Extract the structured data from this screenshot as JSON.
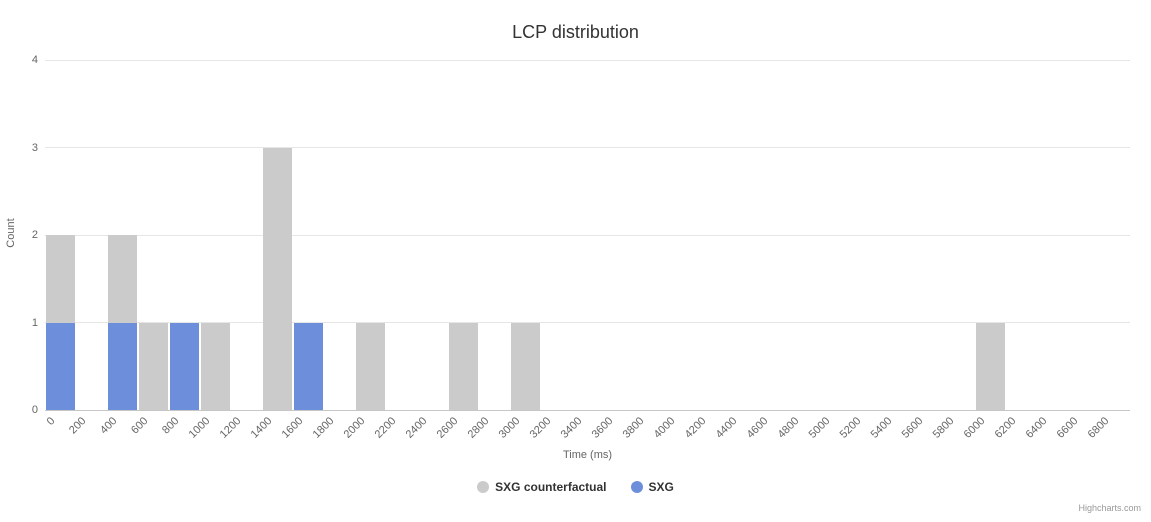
{
  "chart": {
    "title": "LCP distribution",
    "ylabel": "Count",
    "xlabel": "Time (ms)",
    "credit": "Highcharts.com"
  },
  "chart_data": {
    "type": "bar",
    "title": "LCP distribution",
    "xlabel": "Time (ms)",
    "ylabel": "Count",
    "ylim": [
      0,
      4
    ],
    "yticks": [
      0,
      1,
      2,
      3,
      4
    ],
    "grid": true,
    "legend_position": "bottom-center",
    "x_bin_size": 200,
    "x_axis_max": 7000,
    "x_tick_labels": [
      0,
      200,
      400,
      600,
      800,
      1000,
      1200,
      1400,
      1600,
      1800,
      2000,
      2200,
      2400,
      2600,
      2800,
      3000,
      3200,
      3400,
      3600,
      3800,
      4000,
      4200,
      4400,
      4600,
      4800,
      5000,
      5200,
      5400,
      5600,
      5800,
      6000,
      6200,
      6400,
      6600,
      6800
    ],
    "series": [
      {
        "name": "SXG counterfactual",
        "color": "#cbcbcb",
        "bars": [
          {
            "bin_start": 0,
            "count": 2
          },
          {
            "bin_start": 400,
            "count": 2
          },
          {
            "bin_start": 600,
            "count": 1
          },
          {
            "bin_start": 1000,
            "count": 1
          },
          {
            "bin_start": 1400,
            "count": 3
          },
          {
            "bin_start": 2000,
            "count": 1
          },
          {
            "bin_start": 2600,
            "count": 1
          },
          {
            "bin_start": 3000,
            "count": 1
          },
          {
            "bin_start": 6000,
            "count": 1
          }
        ]
      },
      {
        "name": "SXG",
        "color": "#6d8fdb",
        "bars": [
          {
            "bin_start": 0,
            "count": 1
          },
          {
            "bin_start": 400,
            "count": 1
          },
          {
            "bin_start": 800,
            "count": 1
          },
          {
            "bin_start": 1600,
            "count": 1
          }
        ]
      }
    ]
  }
}
